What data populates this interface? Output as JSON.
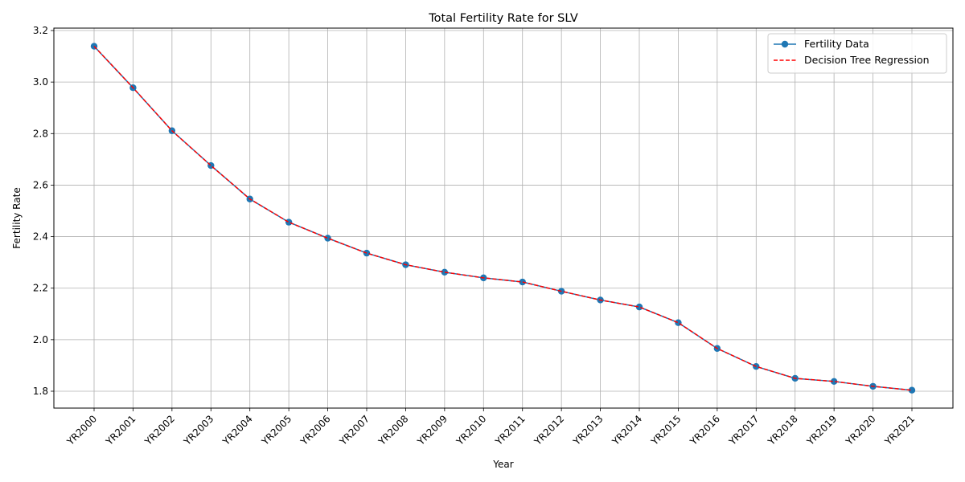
{
  "chart_data": {
    "type": "line",
    "title": "Total Fertility Rate for SLV",
    "xlabel": "Year",
    "ylabel": "Fertility Rate",
    "categories": [
      "YR2000",
      "YR2001",
      "YR2002",
      "YR2003",
      "YR2004",
      "YR2005",
      "YR2006",
      "YR2007",
      "YR2008",
      "YR2009",
      "YR2010",
      "YR2011",
      "YR2012",
      "YR2013",
      "YR2014",
      "YR2015",
      "YR2016",
      "YR2017",
      "YR2018",
      "YR2019",
      "YR2020",
      "YR2021"
    ],
    "yticks": [
      "1.8",
      "2.0",
      "2.2",
      "2.4",
      "2.6",
      "2.8",
      "3.0",
      "3.2"
    ],
    "ylim": [
      1.735,
      3.21
    ],
    "grid": true,
    "legend_position": "top-right",
    "series": [
      {
        "name": "Fertility Data",
        "color": "#1f77b4",
        "style": "solid-with-markers",
        "values": [
          3.139,
          2.978,
          2.811,
          2.676,
          2.546,
          2.456,
          2.394,
          2.336,
          2.291,
          2.262,
          2.24,
          2.224,
          2.188,
          2.154,
          2.127,
          2.066,
          1.966,
          1.896,
          1.85,
          1.838,
          1.819,
          1.804
        ]
      },
      {
        "name": "Decision Tree Regression",
        "color": "#ff0000",
        "style": "dashed",
        "values": [
          3.139,
          2.978,
          2.811,
          2.676,
          2.546,
          2.456,
          2.394,
          2.336,
          2.291,
          2.262,
          2.24,
          2.224,
          2.188,
          2.154,
          2.127,
          2.066,
          1.966,
          1.896,
          1.85,
          1.838,
          1.819,
          1.804
        ]
      }
    ]
  }
}
